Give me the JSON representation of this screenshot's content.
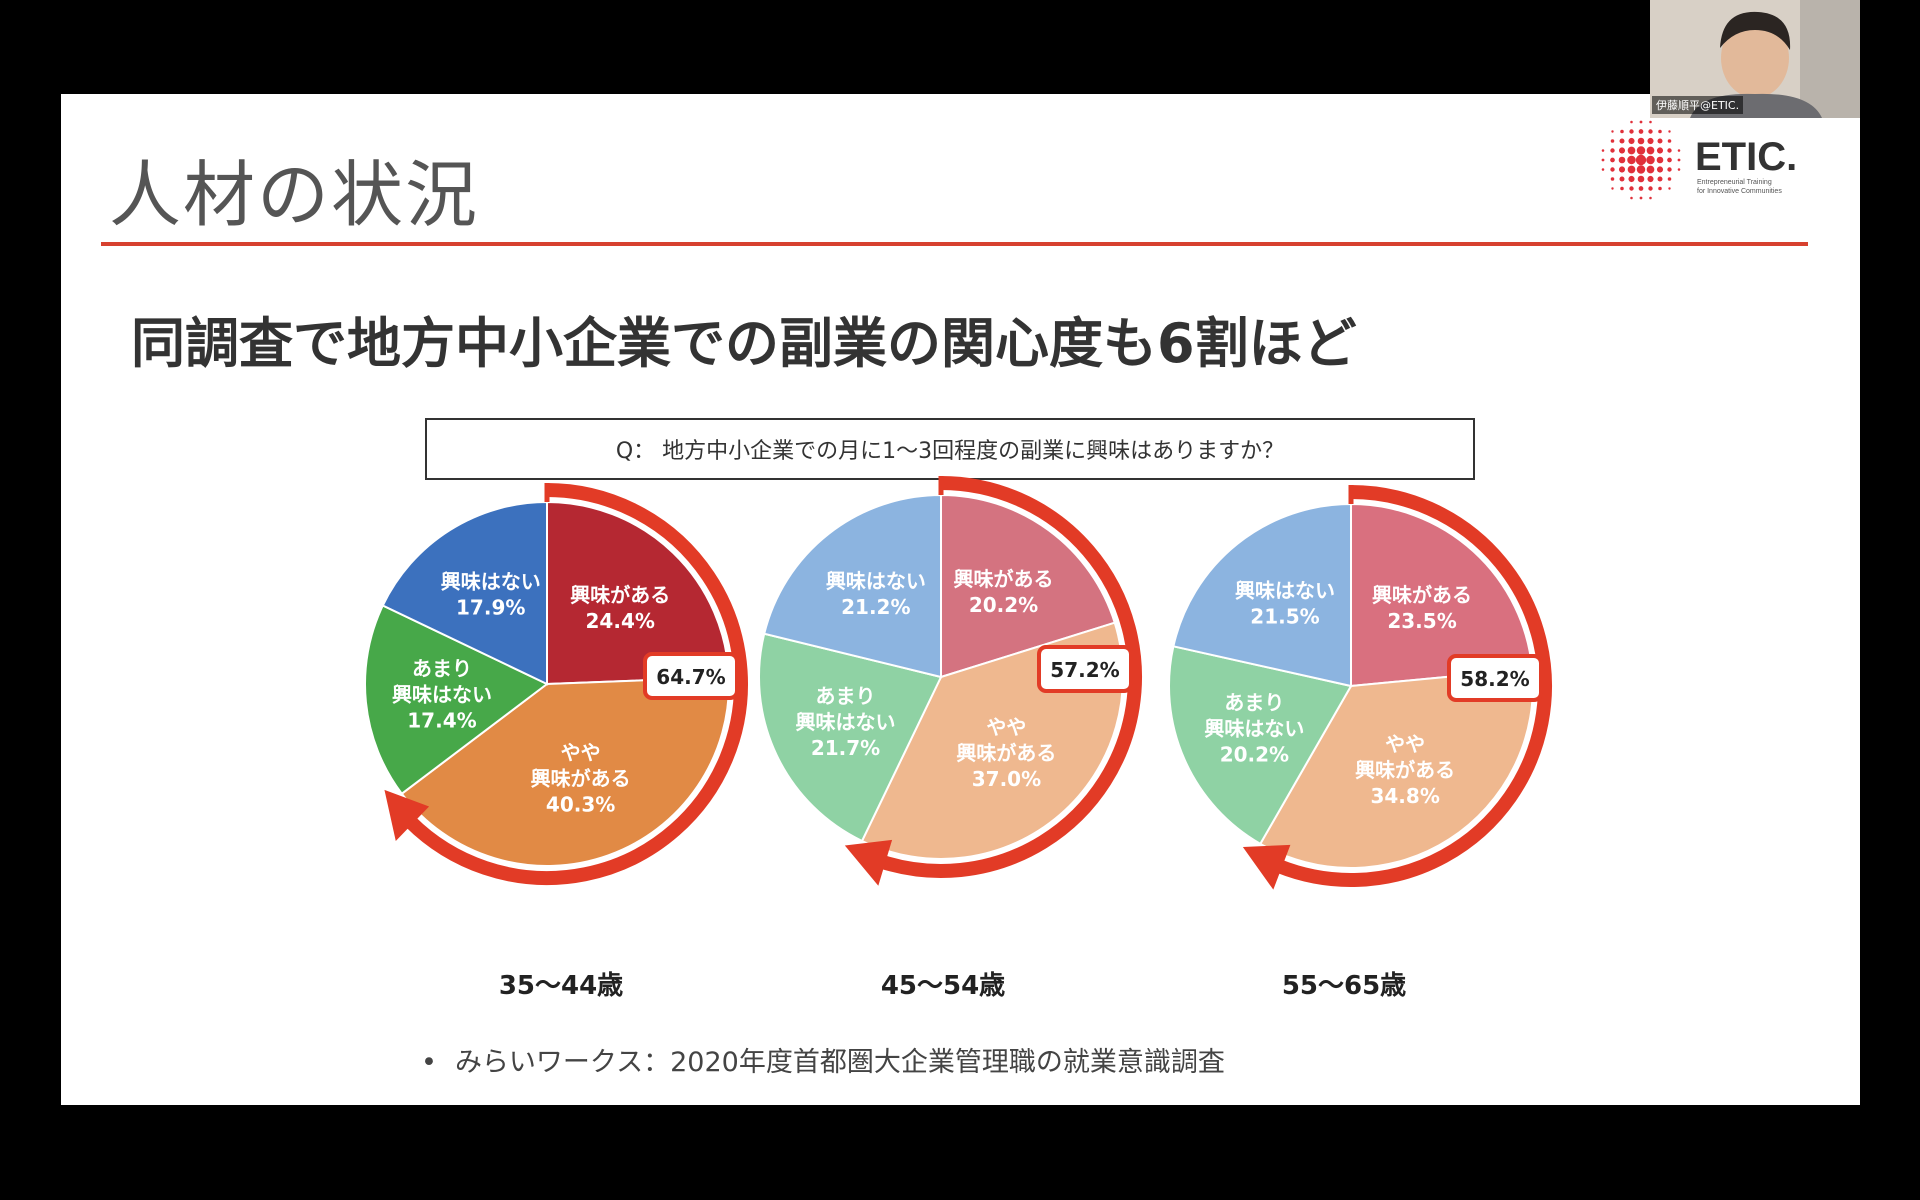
{
  "slide": {
    "title": "人材の状況",
    "heading": "同調査で地方中小企業での副業の関心度も6割ほど",
    "question": "Q： 地方中小企業での月に1〜3回程度の副業に興味はありますか？",
    "source_bullet": "•",
    "source": "みらいワークス：2020年度首都圏大企業管理職の就業意識調査"
  },
  "logo": {
    "text": "ETIC.",
    "tagline_1": "Entrepreneurial Training",
    "tagline_2": "for Innovative Communities",
    "color": "#e0303a"
  },
  "camera": {
    "name": "伊藤順平@ETIC."
  },
  "chart_data": [
    {
      "type": "pie",
      "age_group": "35〜44歳",
      "highlight": "64.7%",
      "slices": [
        {
          "label": "興味がある",
          "value": 24.4,
          "color": "#b52832"
        },
        {
          "label": "やや興味がある",
          "value": 40.3,
          "color": "#e18a45"
        },
        {
          "label": "あまり興味はない",
          "value": 17.4,
          "color": "#47a849"
        },
        {
          "label": "興味はない",
          "value": 17.9,
          "color": "#3c71be"
        }
      ]
    },
    {
      "type": "pie",
      "age_group": "45〜54歳",
      "highlight": "57.2%",
      "slices": [
        {
          "label": "興味がある",
          "value": 20.2,
          "color": "#d47380"
        },
        {
          "label": "やや興味がある",
          "value": 37.0,
          "color": "#efb88f"
        },
        {
          "label": "あまり興味はない",
          "value": 21.7,
          "color": "#8fd2a4"
        },
        {
          "label": "興味はない",
          "value": 21.2,
          "color": "#8cb4e0"
        }
      ]
    },
    {
      "type": "pie",
      "age_group": "55〜65歳",
      "highlight": "58.2%",
      "slices": [
        {
          "label": "興味がある",
          "value": 23.5,
          "color": "#d9707f"
        },
        {
          "label": "やや興味がある",
          "value": 34.8,
          "color": "#efb88f"
        },
        {
          "label": "あまり興味はない",
          "value": 20.2,
          "color": "#8fd2a4"
        },
        {
          "label": "興味はない",
          "value": 21.5,
          "color": "#8cb4e0"
        }
      ]
    }
  ]
}
